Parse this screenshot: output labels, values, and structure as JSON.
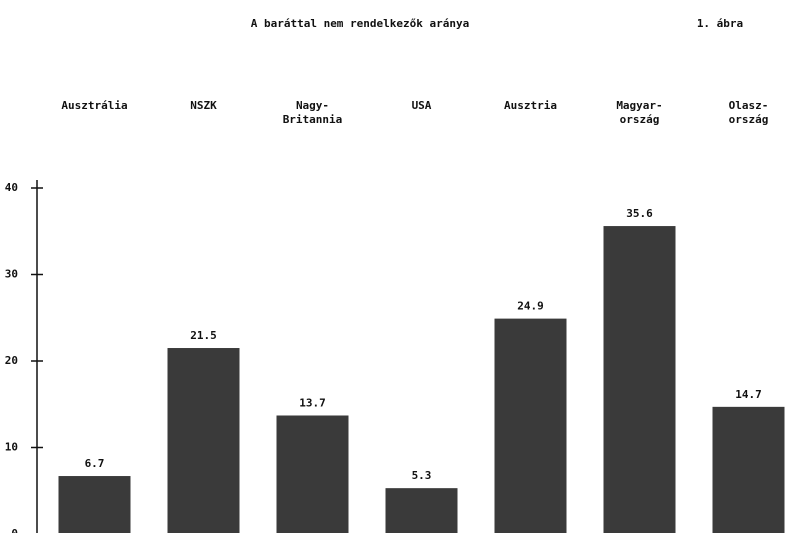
{
  "chart_data": {
    "type": "bar",
    "title": "A baráttal nem rendelkezők aránya",
    "figure_label": "1. ábra",
    "categories": [
      "Ausztrália",
      "NSZK",
      "Nagy-\nBritannia",
      "USA",
      "Ausztria",
      "Magyar-\nország",
      "Olasz-\nország"
    ],
    "values": [
      6.7,
      21.5,
      13.7,
      5.3,
      24.9,
      35.6,
      14.7
    ],
    "color": "#3a3a3a",
    "ylim": [
      0,
      40
    ],
    "yticks": [
      0,
      10,
      20,
      30,
      40
    ],
    "grid": false
  }
}
